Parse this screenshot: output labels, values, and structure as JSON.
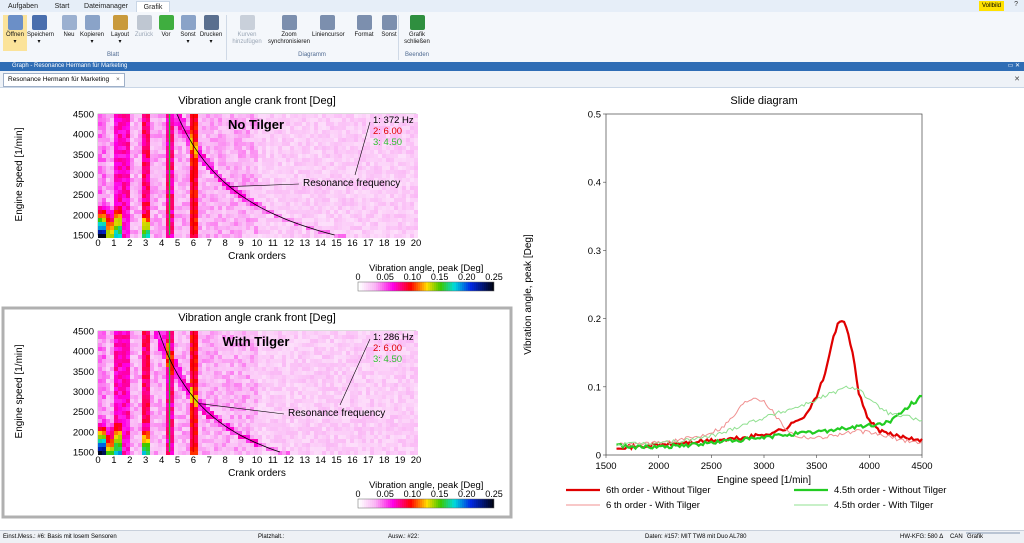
{
  "tabs": [
    "Aufgaben",
    "Start",
    "Dateimanager",
    "Grafik"
  ],
  "active_tab": "Grafik",
  "fullscreen_label": "Vollbild",
  "ribbon": {
    "buttons": [
      {
        "label": "Öffnen",
        "arrow": true,
        "color": "#6b8fc7"
      },
      {
        "label": "Speichern",
        "arrow": true,
        "color": "#4a6fae"
      },
      {
        "label": "Neu",
        "arrow": false,
        "color": "#9bb0d0"
      },
      {
        "label": "Kopieren",
        "arrow": true,
        "color": "#8aa3c8"
      },
      {
        "label": "Layout",
        "arrow": true,
        "color": "#c99a3c"
      },
      {
        "label": "Zurück",
        "arrow": false,
        "color": "#bfc7d2",
        "disabled": true
      },
      {
        "label": "Vor",
        "arrow": false,
        "color": "#3fae3f"
      },
      {
        "label": "Sonst",
        "arrow": true,
        "color": "#8aa3c8"
      },
      {
        "label": "Drucken",
        "arrow": true,
        "color": "#5a6f8f"
      }
    ],
    "group_blatt": "Blatt",
    "diagram_buttons": [
      {
        "label1": "Kurven",
        "label2": "hinzufügen",
        "disabled": true
      },
      {
        "label1": "Zoom",
        "label2": "synchronisieren",
        "disabled": false
      },
      {
        "label1": "Liniencursor",
        "label2": "",
        "disabled": false
      },
      {
        "label1": "Format",
        "label2": "",
        "disabled": false
      },
      {
        "label1": "Sonst",
        "label2": "",
        "disabled": false
      }
    ],
    "group_diagramm": "Diagramm",
    "close_button": {
      "label1": "Grafik",
      "label2": "schließen"
    },
    "group_beenden": "Beenden"
  },
  "window_title": "Graph - Resonance Hermann für Marketing",
  "doc_tab": "Resonance Hermann für Marketing",
  "close_x": "×",
  "status": {
    "left": "Einst.Mess.: #6: Basis mit losem Sensoren",
    "platz": "Platzhalt.:",
    "ausw": "Ausw.: #22:",
    "daten": "Daten: #157: MIT TW8 mit Duo AL780",
    "hw": "HW-KFG: 580 Δ",
    "can": "CAN",
    "mode": "Grafik"
  },
  "chart_data": [
    {
      "type": "heatmap",
      "title": "Vibration angle crank front [Deg]",
      "overlay_title": "No Tilger",
      "xlabel": "Crank orders",
      "ylabel": "Engine speed [1/min]",
      "xlim": [
        0,
        20
      ],
      "ylim": [
        1500,
        4500
      ],
      "x_ticks": [
        "0",
        "1",
        "2",
        "3",
        "4",
        "5",
        "6",
        "7",
        "8",
        "9",
        "10",
        "11",
        "12",
        "13",
        "14",
        "15",
        "16",
        "17",
        "18",
        "19",
        "20"
      ],
      "y_ticks": [
        "1500",
        "2000",
        "2500",
        "3000",
        "3500",
        "4000",
        "4500"
      ],
      "cursor_lines": [
        {
          "label": "1: 372 Hz",
          "color": "#000000"
        },
        {
          "label": "2: 6.00",
          "color": "#e00000",
          "order": 6.0
        },
        {
          "label": "3: 4.50",
          "color": "#2fc02f",
          "order": 4.5
        }
      ],
      "resonance_hz": 372,
      "annotation": "Resonance frequency",
      "colorbar_title": "Vibration angle, peak [Deg]",
      "colorbar_ticks": [
        "0",
        "0.05",
        "0.10",
        "0.15",
        "0.20",
        "0.25"
      ]
    },
    {
      "type": "heatmap",
      "title": "Vibration angle crank front [Deg]",
      "overlay_title": "With Tilger",
      "xlabel": "Crank orders",
      "ylabel": "Engine speed [1/min]",
      "xlim": [
        0,
        20
      ],
      "ylim": [
        1500,
        4500
      ],
      "x_ticks": [
        "0",
        "1",
        "2",
        "3",
        "4",
        "5",
        "6",
        "7",
        "8",
        "9",
        "10",
        "11",
        "12",
        "13",
        "14",
        "15",
        "16",
        "17",
        "18",
        "19",
        "20"
      ],
      "y_ticks": [
        "1500",
        "2000",
        "2500",
        "3000",
        "3500",
        "4000",
        "4500"
      ],
      "cursor_lines": [
        {
          "label": "1: 286 Hz",
          "color": "#000000"
        },
        {
          "label": "2: 6.00",
          "color": "#e00000",
          "order": 6.0
        },
        {
          "label": "3: 4.50",
          "color": "#2fc02f",
          "order": 4.5
        }
      ],
      "resonance_hz": 286,
      "annotation": "Resonance frequency",
      "colorbar_title": "Vibration angle, peak [Deg]",
      "colorbar_ticks": [
        "0",
        "0.05",
        "0.10",
        "0.15",
        "0.20",
        "0.25"
      ]
    },
    {
      "type": "line",
      "title": "Slide diagram",
      "xlabel": "Engine speed [1/min]",
      "ylabel": "Vibration angle, peak [Deg]",
      "xlim": [
        1500,
        4500
      ],
      "ylim": [
        0,
        0.5
      ],
      "x_ticks": [
        "1500",
        "2000",
        "2500",
        "3000",
        "3500",
        "4000",
        "4500"
      ],
      "y_ticks": [
        "0",
        "0.1",
        "0.2",
        "0.3",
        "0.4",
        "0.5"
      ],
      "series": [
        {
          "name": "6th order - Without Tilger",
          "color": "#e00000",
          "width": 2.2,
          "x": [
            1600,
            1800,
            2000,
            2200,
            2400,
            2600,
            2800,
            3000,
            3200,
            3400,
            3500,
            3600,
            3650,
            3700,
            3750,
            3800,
            3850,
            3900,
            4000,
            4100,
            4200,
            4300,
            4400,
            4500
          ],
          "y": [
            0.012,
            0.012,
            0.015,
            0.017,
            0.02,
            0.022,
            0.025,
            0.03,
            0.038,
            0.06,
            0.085,
            0.13,
            0.17,
            0.19,
            0.197,
            0.18,
            0.14,
            0.09,
            0.05,
            0.035,
            0.03,
            0.027,
            0.025,
            0.022
          ]
        },
        {
          "name": "6 th order - With Tilger",
          "color": "#f09090",
          "width": 1,
          "x": [
            1600,
            1800,
            2000,
            2200,
            2400,
            2600,
            2700,
            2800,
            2900,
            3000,
            3100,
            3200,
            3300,
            3500,
            3700,
            3900,
            4100,
            4300,
            4500
          ],
          "y": [
            0.015,
            0.016,
            0.018,
            0.022,
            0.028,
            0.04,
            0.055,
            0.075,
            0.085,
            0.08,
            0.06,
            0.04,
            0.028,
            0.025,
            0.03,
            0.035,
            0.03,
            0.022,
            0.018
          ]
        },
        {
          "name": "4.5th order - Without Tilger",
          "color": "#22cc22",
          "width": 2.2,
          "x": [
            1600,
            1800,
            2000,
            2200,
            2400,
            2600,
            2800,
            3000,
            3200,
            3400,
            3600,
            3800,
            4000,
            4100,
            4200,
            4300,
            4400,
            4450,
            4500
          ],
          "y": [
            0.015,
            0.012,
            0.012,
            0.014,
            0.016,
            0.02,
            0.022,
            0.025,
            0.03,
            0.032,
            0.036,
            0.04,
            0.043,
            0.045,
            0.05,
            0.06,
            0.075,
            0.08,
            0.088
          ]
        },
        {
          "name": "4.5th order - With Tilger",
          "color": "#90e090",
          "width": 1,
          "x": [
            1600,
            1800,
            2000,
            2200,
            2400,
            2600,
            2800,
            3000,
            3200,
            3400,
            3600,
            3800,
            3900,
            4000,
            4200,
            4400,
            4500
          ],
          "y": [
            0.015,
            0.016,
            0.018,
            0.02,
            0.025,
            0.032,
            0.045,
            0.055,
            0.065,
            0.075,
            0.088,
            0.1,
            0.098,
            0.08,
            0.06,
            0.055,
            0.05
          ]
        }
      ],
      "legend_position": "bottom"
    }
  ]
}
